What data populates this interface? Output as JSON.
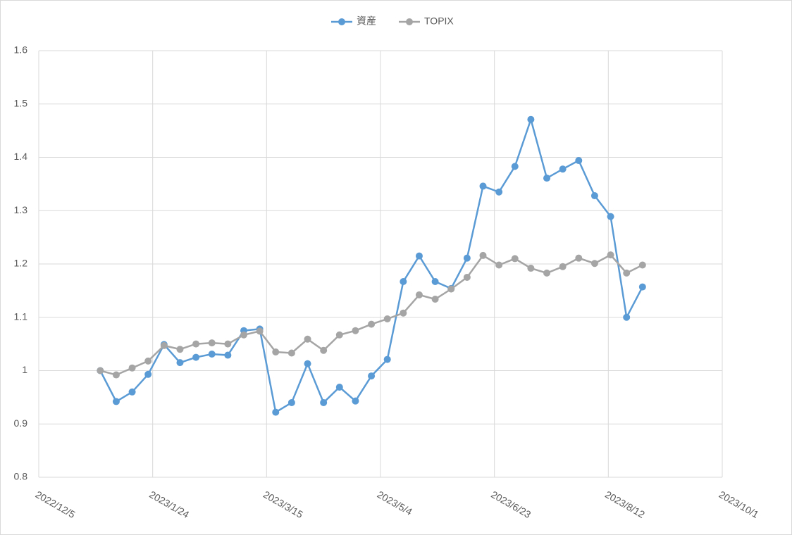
{
  "chart_data": {
    "type": "line",
    "x": [
      "2023/1/1",
      "2023/1/8",
      "2023/1/15",
      "2023/1/22",
      "2023/1/29",
      "2023/2/5",
      "2023/2/12",
      "2023/2/19",
      "2023/2/26",
      "2023/3/5",
      "2023/3/12",
      "2023/3/19",
      "2023/3/26",
      "2023/4/2",
      "2023/4/9",
      "2023/4/16",
      "2023/4/23",
      "2023/4/30",
      "2023/5/7",
      "2023/5/14",
      "2023/5/21",
      "2023/5/28",
      "2023/6/4",
      "2023/6/11",
      "2023/6/18",
      "2023/6/25",
      "2023/7/2",
      "2023/7/9",
      "2023/7/16",
      "2023/7/23",
      "2023/7/30",
      "2023/8/6",
      "2023/8/13",
      "2023/8/20",
      "2023/8/27"
    ],
    "series": [
      {
        "name": "資産",
        "color": "#5b9bd5",
        "values": [
          1.0,
          0.942,
          0.96,
          0.993,
          1.049,
          1.015,
          1.025,
          1.031,
          1.029,
          1.075,
          1.078,
          0.922,
          0.94,
          1.013,
          0.94,
          0.969,
          0.943,
          0.99,
          1.021,
          1.167,
          1.215,
          1.167,
          1.154,
          1.211,
          1.346,
          1.335,
          1.383,
          1.471,
          1.361,
          1.378,
          1.394,
          1.328,
          1.289,
          1.1,
          1.157
        ]
      },
      {
        "name": "TOPIX",
        "color": "#a5a5a5",
        "values": [
          1.0,
          0.992,
          1.005,
          1.018,
          1.047,
          1.04,
          1.05,
          1.052,
          1.05,
          1.067,
          1.074,
          1.035,
          1.033,
          1.059,
          1.038,
          1.067,
          1.075,
          1.087,
          1.097,
          1.108,
          1.142,
          1.134,
          1.153,
          1.175,
          1.216,
          1.198,
          1.21,
          1.192,
          1.183,
          1.195,
          1.211,
          1.201,
          1.217,
          1.183,
          1.198
        ]
      }
    ],
    "xlim": [
      "2022/12/5",
      "2023/10/1"
    ],
    "xticks": [
      "2022/12/5",
      "2023/1/24",
      "2023/3/15",
      "2023/5/4",
      "2023/6/23",
      "2023/8/12",
      "2023/10/1"
    ],
    "ylim": [
      0.8,
      1.6
    ],
    "yticks": [
      0.8,
      0.9,
      1,
      1.1,
      1.2,
      1.3,
      1.4,
      1.5,
      1.6
    ],
    "grid": true,
    "legend": "top"
  }
}
